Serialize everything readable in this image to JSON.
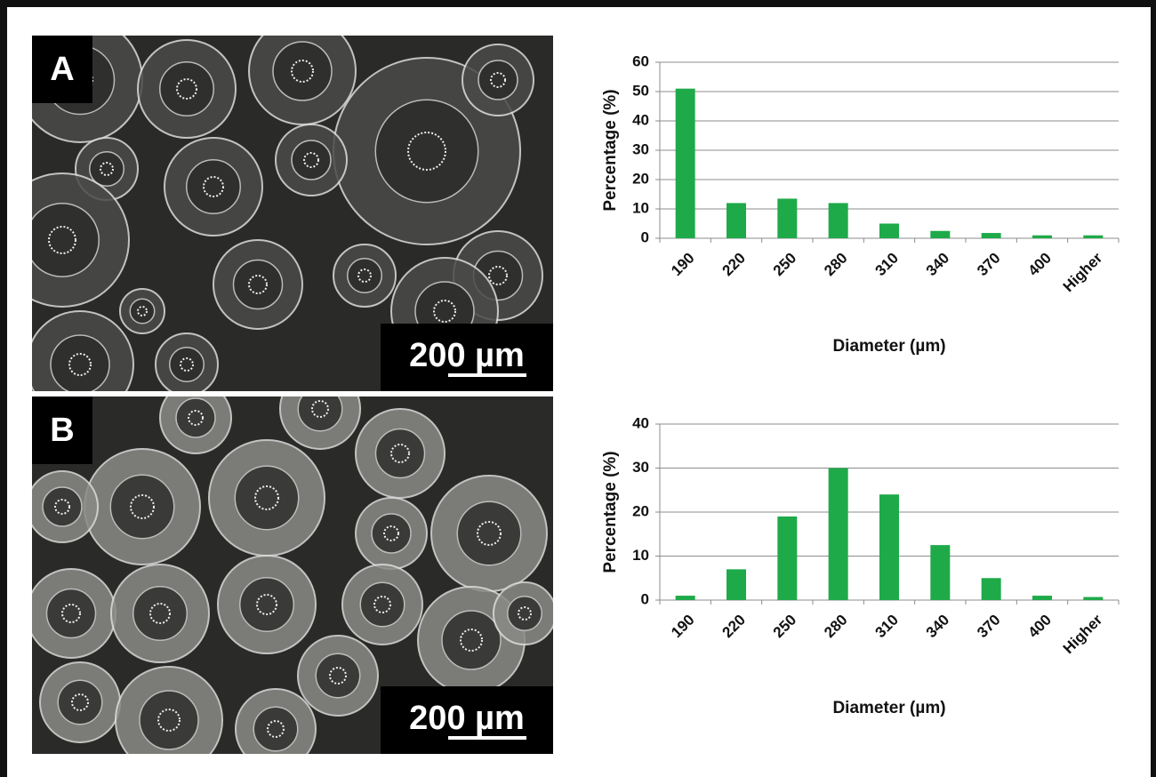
{
  "panels": [
    {
      "label": "A",
      "scale_bar": "200 µm"
    },
    {
      "label": "B",
      "scale_bar": "200 µm"
    }
  ],
  "chart_data": [
    {
      "type": "bar",
      "categories": [
        "190",
        "220",
        "250",
        "280",
        "310",
        "340",
        "370",
        "400",
        "Higher"
      ],
      "values": [
        51,
        12,
        13.5,
        12,
        5,
        2.5,
        1.8,
        1,
        1
      ],
      "color": "#1faa4a",
      "ylim": [
        0,
        60
      ],
      "yticks": [
        0,
        10,
        20,
        30,
        40,
        50,
        60
      ],
      "grid": true,
      "xlabel": "Diameter (µm)",
      "ylabel": "Percentage (%)"
    },
    {
      "type": "bar",
      "categories": [
        "190",
        "220",
        "250",
        "280",
        "310",
        "340",
        "370",
        "400",
        "Higher"
      ],
      "values": [
        1,
        7,
        19,
        30,
        24,
        12.5,
        5,
        1,
        0.7
      ],
      "color": "#1faa4a",
      "ylim": [
        0,
        40
      ],
      "yticks": [
        0,
        10,
        20,
        30,
        40
      ],
      "grid": true,
      "xlabel": "Diameter (µm)",
      "ylabel": "Percentage (%)"
    }
  ]
}
